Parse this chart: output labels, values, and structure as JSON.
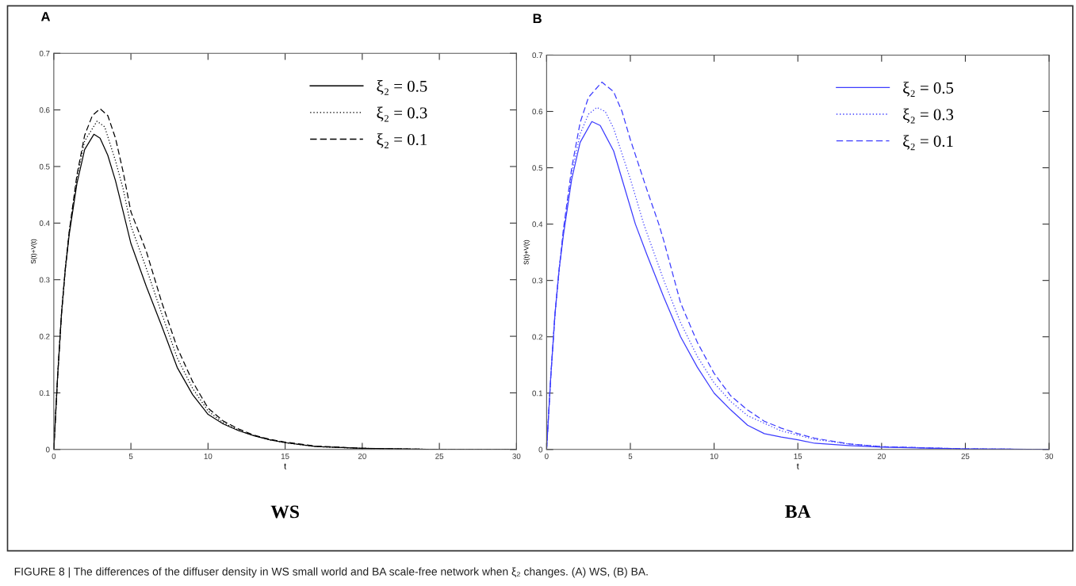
{
  "chart_data": [
    {
      "type": "line",
      "title": "WS",
      "xlabel": "t",
      "ylabel": "S(t)+V(t)",
      "xlim": [
        0,
        30
      ],
      "xticks": [
        0,
        5,
        10,
        15,
        20,
        25,
        30
      ],
      "ylim": [
        0,
        0.7
      ],
      "yticks": [
        0,
        0.1,
        0.2,
        0.3,
        0.4,
        0.5,
        0.6,
        0.7
      ],
      "legend": "top right",
      "grid": false,
      "annotations": [
        "A",
        "FIGURE 8 | The differences of the diffuser density in WS small world and BA scale-free network when ξ₂ changes. (A) WS, (B) BA."
      ],
      "series": [
        {
          "name": "ξ₂ = 0.5",
          "color": "#000000",
          "line_style": "solid",
          "x": [
            0,
            0.25,
            0.5,
            0.75,
            1,
            1.5,
            2,
            2.6,
            3,
            3.5,
            4,
            4.5,
            5,
            6,
            7,
            8,
            9,
            10,
            11,
            12,
            13,
            14,
            15,
            17,
            20,
            25,
            30
          ],
          "values": [
            0,
            0.13,
            0.24,
            0.32,
            0.38,
            0.47,
            0.53,
            0.557,
            0.55,
            0.52,
            0.475,
            0.42,
            0.364,
            0.288,
            0.218,
            0.145,
            0.097,
            0.062,
            0.045,
            0.033,
            0.024,
            0.017,
            0.012,
            0.005,
            0.002,
            0,
            0
          ]
        },
        {
          "name": "ξ₂ = 0.3",
          "color": "#000000",
          "line_style": "dotted",
          "x": [
            0,
            0.25,
            0.5,
            0.75,
            1,
            1.5,
            2,
            2.8,
            3.3,
            4,
            4.5,
            5,
            6,
            7,
            8,
            9,
            10,
            11,
            12,
            13,
            14,
            15,
            17,
            20,
            25,
            30
          ],
          "values": [
            0,
            0.13,
            0.24,
            0.32,
            0.385,
            0.48,
            0.545,
            0.58,
            0.57,
            0.51,
            0.46,
            0.395,
            0.32,
            0.24,
            0.162,
            0.108,
            0.068,
            0.047,
            0.034,
            0.024,
            0.017,
            0.012,
            0.005,
            0.002,
            0,
            0
          ]
        },
        {
          "name": "ξ₂ = 0.1",
          "color": "#000000",
          "line_style": "dashed",
          "x": [
            0,
            0.25,
            0.5,
            0.75,
            1,
            1.5,
            2,
            2.5,
            3,
            3.5,
            4,
            4.5,
            5,
            6,
            7,
            8,
            9,
            10,
            11,
            12,
            13,
            14,
            15,
            17,
            20,
            25,
            30
          ],
          "values": [
            0,
            0.13,
            0.24,
            0.32,
            0.385,
            0.485,
            0.555,
            0.59,
            0.602,
            0.59,
            0.55,
            0.49,
            0.42,
            0.35,
            0.26,
            0.18,
            0.12,
            0.073,
            0.05,
            0.036,
            0.025,
            0.018,
            0.013,
            0.006,
            0.002,
            0,
            0
          ]
        }
      ]
    },
    {
      "type": "line",
      "title": "BA",
      "xlabel": "t",
      "ylabel": "S(t)+V(t)",
      "xlim": [
        0,
        30
      ],
      "xticks": [
        0,
        5,
        10,
        15,
        20,
        25,
        30
      ],
      "ylim": [
        0,
        0.7
      ],
      "yticks": [
        0,
        0.1,
        0.2,
        0.3,
        0.4,
        0.5,
        0.6,
        0.7
      ],
      "legend": "top right",
      "grid": false,
      "annotations": [
        "B"
      ],
      "series": [
        {
          "name": "ξ₂ = 0.5",
          "color": "#3c3cff",
          "line_style": "solid",
          "x": [
            0,
            0.25,
            0.5,
            0.75,
            1,
            1.5,
            2,
            2.7,
            3.2,
            4,
            4.5,
            5,
            5.3,
            6,
            7,
            8,
            9,
            10,
            11,
            12,
            13,
            14,
            15,
            16,
            18,
            20,
            25,
            30
          ],
          "values": [
            0,
            0.13,
            0.24,
            0.32,
            0.38,
            0.48,
            0.545,
            0.582,
            0.575,
            0.53,
            0.48,
            0.43,
            0.4,
            0.345,
            0.27,
            0.2,
            0.146,
            0.1,
            0.07,
            0.043,
            0.028,
            0.022,
            0.017,
            0.011,
            0.007,
            0.004,
            0.001,
            0
          ]
        },
        {
          "name": "ξ₂ = 0.3",
          "color": "#3c3cff",
          "line_style": "dotted",
          "x": [
            0,
            0.25,
            0.5,
            0.75,
            1,
            1.5,
            2,
            2.5,
            3,
            3.5,
            4,
            5,
            5.8,
            7,
            8,
            9,
            10,
            11,
            12,
            14,
            16,
            18,
            20,
            25,
            30
          ],
          "values": [
            0,
            0.13,
            0.24,
            0.32,
            0.385,
            0.49,
            0.56,
            0.595,
            0.607,
            0.6,
            0.57,
            0.48,
            0.4,
            0.3,
            0.225,
            0.165,
            0.118,
            0.085,
            0.06,
            0.033,
            0.018,
            0.01,
            0.005,
            0.001,
            0
          ]
        },
        {
          "name": "ξ₂ = 0.1",
          "color": "#3c3cff",
          "line_style": "dashed",
          "x": [
            0,
            0.25,
            0.5,
            0.75,
            1,
            1.5,
            2,
            2.5,
            3.3,
            4,
            4.5,
            5,
            6,
            6.7,
            7,
            8,
            9,
            10,
            11,
            12,
            13,
            14,
            15,
            16,
            18,
            20,
            25,
            30
          ],
          "values": [
            0,
            0.13,
            0.24,
            0.32,
            0.39,
            0.5,
            0.58,
            0.625,
            0.652,
            0.635,
            0.6,
            0.55,
            0.46,
            0.4,
            0.37,
            0.26,
            0.19,
            0.135,
            0.095,
            0.07,
            0.05,
            0.038,
            0.028,
            0.02,
            0.01,
            0.005,
            0.001,
            0
          ]
        }
      ]
    }
  ]
}
